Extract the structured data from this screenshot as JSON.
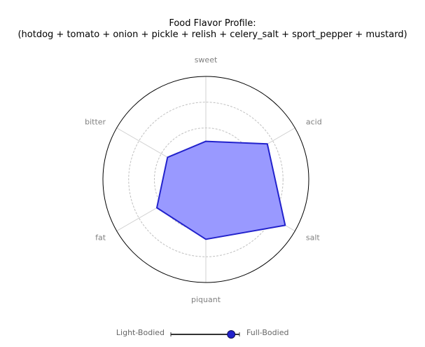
{
  "chart_data": {
    "type": "radar",
    "title_lines": [
      "Food Flavor Profile:",
      "(hotdog + tomato + onion + pickle + relish + celery_salt + sport_pepper + mustard)"
    ],
    "axes": [
      "sweet",
      "acid",
      "salt",
      "piquant",
      "fat",
      "bitter"
    ],
    "values": [
      0.37,
      0.69,
      0.89,
      0.58,
      0.55,
      0.43
    ],
    "rmax": 1.0,
    "rings": [
      0.25,
      0.5,
      0.75
    ],
    "grid": true,
    "fill_color": "#9999ff",
    "line_color": "#2222cc"
  },
  "slider": {
    "left_label": "Light-Bodied",
    "right_label": "Full-Bodied",
    "value": 0.88,
    "handle_color": "#2222cc"
  }
}
